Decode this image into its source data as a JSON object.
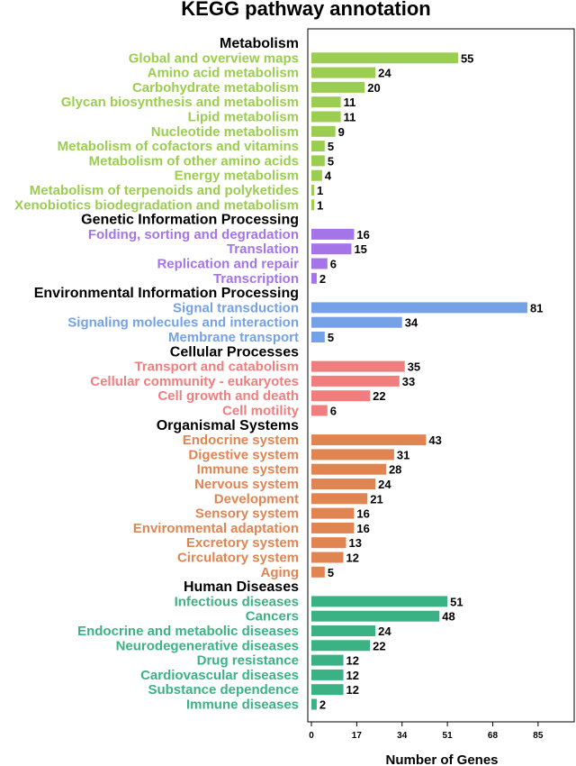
{
  "chart_data": {
    "type": "bar",
    "orientation": "horizontal",
    "title": "KEGG pathway annotation",
    "xlabel": "Number of Genes",
    "xlim": [
      0,
      98
    ],
    "xticks": [
      0,
      17,
      34,
      51,
      68,
      85
    ],
    "grid": false,
    "groups": [
      {
        "name": "Metabolism",
        "color": "#9ACD50",
        "categories": [
          "Global and overview maps",
          "Amino acid metabolism",
          "Carbohydrate metabolism",
          "Glycan biosynthesis and metabolism",
          "Lipid metabolism",
          "Nucleotide metabolism",
          "Metabolism of cofactors and vitamins",
          "Metabolism of other amino acids",
          "Energy metabolism",
          "Metabolism of terpenoids and polyketides",
          "Xenobiotics biodegradation and metabolism"
        ],
        "values": [
          55,
          24,
          20,
          11,
          11,
          9,
          5,
          5,
          4,
          1,
          1
        ]
      },
      {
        "name": "Genetic Information Processing",
        "color": "#A474E8",
        "categories": [
          "Folding, sorting and degradation",
          "Translation",
          "Replication and repair",
          "Transcription"
        ],
        "values": [
          16,
          15,
          6,
          2
        ]
      },
      {
        "name": "Environmental Information Processing",
        "color": "#75A2E6",
        "categories": [
          "Signal transduction",
          "Signaling molecules and interaction",
          "Membrane transport"
        ],
        "values": [
          81,
          34,
          5
        ]
      },
      {
        "name": "Cellular Processes",
        "color": "#F07E7E",
        "categories": [
          "Transport and catabolism",
          "Cellular community - eukaryotes",
          "Cell growth and death",
          "Cell motility"
        ],
        "values": [
          35,
          33,
          22,
          6
        ]
      },
      {
        "name": "Organismal Systems",
        "color": "#E08452",
        "categories": [
          "Endocrine system",
          "Digestive system",
          "Immune system",
          "Nervous system",
          "Development",
          "Sensory system",
          "Environmental adaptation",
          "Excretory system",
          "Circulatory system",
          "Aging"
        ],
        "values": [
          43,
          31,
          28,
          24,
          21,
          16,
          16,
          13,
          12,
          5
        ]
      },
      {
        "name": "Human Diseases",
        "color": "#3BB283",
        "categories": [
          "Infectious diseases",
          "Cancers",
          "Endocrine and metabolic diseases",
          "Neurodegenerative diseases",
          "Drug resistance",
          "Cardiovascular diseases",
          "Substance dependence",
          "Immune diseases"
        ],
        "values": [
          51,
          48,
          24,
          22,
          12,
          12,
          12,
          2
        ]
      }
    ]
  }
}
